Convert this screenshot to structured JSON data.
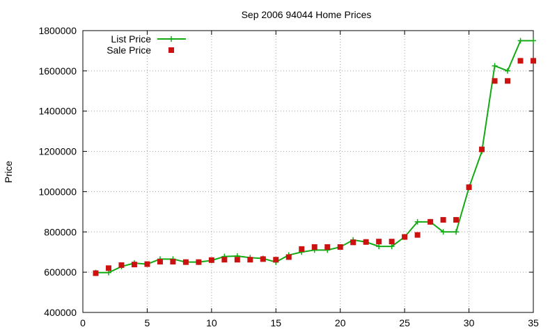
{
  "chart_data": {
    "type": "line",
    "title": "Sep 2006 94044 Home Prices",
    "xlabel": "",
    "ylabel": "Price",
    "xlim": [
      0,
      35
    ],
    "ylim": [
      400000,
      1800000
    ],
    "x_ticks": [
      0,
      5,
      10,
      15,
      20,
      25,
      30,
      35
    ],
    "y_ticks": [
      400000,
      600000,
      800000,
      1000000,
      1200000,
      1400000,
      1600000,
      1800000
    ],
    "grid": true,
    "legend_position": "top-left",
    "series": [
      {
        "name": "List Price",
        "style": "line-with-plus-markers",
        "color": "#11aa11",
        "points": [
          [
            1,
            598000
          ],
          [
            2,
            598000
          ],
          [
            3,
            628000
          ],
          [
            4,
            645000
          ],
          [
            5,
            640000
          ],
          [
            6,
            665000
          ],
          [
            7,
            665000
          ],
          [
            8,
            650000
          ],
          [
            9,
            650000
          ],
          [
            10,
            658000
          ],
          [
            11,
            678000
          ],
          [
            12,
            680000
          ],
          [
            13,
            672000
          ],
          [
            14,
            668000
          ],
          [
            15,
            650000
          ],
          [
            16,
            685000
          ],
          [
            17,
            700000
          ],
          [
            18,
            710000
          ],
          [
            19,
            710000
          ],
          [
            20,
            725000
          ],
          [
            21,
            760000
          ],
          [
            22,
            750000
          ],
          [
            23,
            728000
          ],
          [
            24,
            728000
          ],
          [
            25,
            775000
          ],
          [
            26,
            850000
          ],
          [
            27,
            850000
          ],
          [
            28,
            800000
          ],
          [
            29,
            800000
          ],
          [
            30,
            1020000
          ],
          [
            31,
            1200000
          ],
          [
            32,
            1625000
          ],
          [
            33,
            1600000
          ],
          [
            34,
            1750000
          ],
          [
            35,
            1750000
          ]
        ]
      },
      {
        "name": "Sale Price",
        "style": "square-markers",
        "color": "#cc1111",
        "points": [
          [
            1,
            595000
          ],
          [
            2,
            620000
          ],
          [
            3,
            635000
          ],
          [
            4,
            638000
          ],
          [
            5,
            640000
          ],
          [
            6,
            652000
          ],
          [
            7,
            652000
          ],
          [
            8,
            650000
          ],
          [
            9,
            650000
          ],
          [
            10,
            660000
          ],
          [
            11,
            662000
          ],
          [
            12,
            662000
          ],
          [
            13,
            662000
          ],
          [
            14,
            665000
          ],
          [
            15,
            662000
          ],
          [
            16,
            675000
          ],
          [
            17,
            715000
          ],
          [
            18,
            725000
          ],
          [
            19,
            725000
          ],
          [
            20,
            725000
          ],
          [
            21,
            748000
          ],
          [
            22,
            750000
          ],
          [
            23,
            752000
          ],
          [
            24,
            752000
          ],
          [
            25,
            775000
          ],
          [
            26,
            785000
          ],
          [
            27,
            850000
          ],
          [
            28,
            860000
          ],
          [
            29,
            860000
          ],
          [
            30,
            1022000
          ],
          [
            31,
            1210000
          ],
          [
            32,
            1550000
          ],
          [
            33,
            1550000
          ],
          [
            34,
            1650000
          ],
          [
            35,
            1650000
          ]
        ]
      }
    ]
  }
}
